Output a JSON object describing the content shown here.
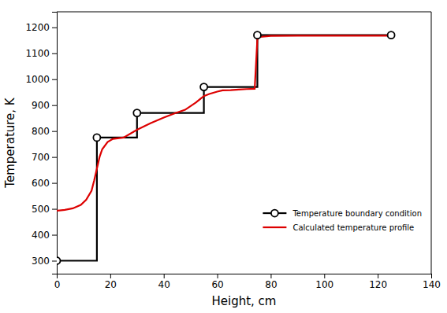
{
  "chart_data": {
    "type": "line",
    "xlabel": "Height, cm",
    "ylabel": "Temperature, K",
    "xlim": [
      0,
      140
    ],
    "ylim": [
      250,
      1260
    ],
    "xticks": [
      0,
      20,
      40,
      60,
      80,
      100,
      120,
      140
    ],
    "yticks": [
      300,
      400,
      500,
      600,
      700,
      800,
      900,
      1000,
      1100,
      1200
    ],
    "grid": false,
    "legend": "lower right",
    "series": [
      {
        "name": "Temperature boundary condition",
        "type": "line",
        "color": "#000000",
        "x": [
          0,
          15,
          15,
          30,
          30,
          55,
          55,
          75,
          75,
          125
        ],
        "values": [
          300,
          300,
          775,
          775,
          870,
          870,
          970,
          970,
          1170,
          1170
        ]
      },
      {
        "type": "scatter",
        "marker": "circle",
        "color": "#000000",
        "x": [
          0,
          15,
          30,
          55,
          75,
          125
        ],
        "values": [
          300,
          775,
          870,
          970,
          1170,
          1170
        ]
      },
      {
        "name": "Calculated temperature profile",
        "type": "line",
        "color": "#dd0000",
        "x": [
          0,
          1,
          3,
          6,
          9,
          11,
          13,
          14,
          15,
          16,
          17,
          19,
          21,
          25,
          30,
          35,
          40,
          44,
          48,
          52,
          55,
          57,
          60,
          62,
          65,
          68,
          71,
          74,
          75,
          76,
          80,
          90,
          100,
          115,
          125
        ],
        "values": [
          493,
          494,
          496,
          502,
          515,
          535,
          570,
          610,
          655,
          700,
          730,
          758,
          770,
          775,
          805,
          830,
          852,
          868,
          882,
          910,
          935,
          943,
          952,
          957,
          958,
          960,
          962,
          963,
          1155,
          1163,
          1167,
          1168,
          1168,
          1168,
          1168
        ]
      }
    ]
  }
}
